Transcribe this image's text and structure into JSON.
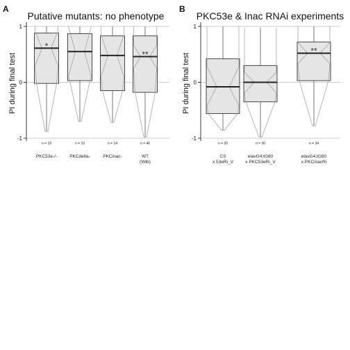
{
  "chart_data": [
    {
      "type": "box",
      "panel_label": "A",
      "title": "Putative mutants: no phenotype",
      "ylabel": "PI during final test",
      "ylim": [
        -1,
        1
      ],
      "yticks": [
        "-1",
        "0",
        "1"
      ],
      "grid": "horizontal at -1, 0, 1",
      "categories": [
        {
          "lines": [
            "PKC53e-/-"
          ],
          "n_label": "n = 19",
          "q1": -0.02,
          "median": 0.61,
          "q3": 0.88,
          "whisker_low": -0.88,
          "whisker_high": 1.0,
          "notch_low": 0.3,
          "notch_high": 0.92,
          "sig": "*"
        },
        {
          "lines": [
            "PKCdelta-"
          ],
          "n_label": "n = 10",
          "q1": 0.03,
          "median": 0.55,
          "q3": 0.87,
          "whisker_low": -0.7,
          "whisker_high": 1.0,
          "notch_low": 0.1,
          "notch_high": 1.0,
          "sig": ""
        },
        {
          "lines": [
            "PKCinac-"
          ],
          "n_label": "n = 14",
          "q1": -0.15,
          "median": 0.48,
          "q3": 0.83,
          "whisker_low": -0.72,
          "whisker_high": 1.0,
          "notch_low": 0.1,
          "notch_high": 0.85,
          "sig": ""
        },
        {
          "lines": [
            "WT",
            "(Wtb)"
          ],
          "n_label": "n = 40",
          "q1": -0.18,
          "median": 0.46,
          "q3": 0.83,
          "whisker_low": -0.98,
          "whisker_high": 1.0,
          "notch_low": 0.25,
          "notch_high": 0.66,
          "sig": "**"
        }
      ]
    },
    {
      "type": "box",
      "panel_label": "B",
      "title": "PKC53e & Inac RNAi experiments",
      "ylabel": "PI during final test",
      "ylim": [
        -1,
        1
      ],
      "yticks": [
        "-1",
        "0",
        "1"
      ],
      "grid": "horizontal at -1, 0, 1",
      "categories": [
        {
          "lines": [
            "CS",
            "x 53eRi_V"
          ],
          "n_label": "n = 20",
          "q1": -0.56,
          "median": -0.08,
          "q3": 0.42,
          "whisker_low": -0.86,
          "whisker_high": 1.0,
          "notch_low": -0.42,
          "notch_high": 0.28,
          "sig": ""
        },
        {
          "lines": [
            "elavG4;tG80",
            "x PKC53eRi_V"
          ],
          "n_label": "n = 30",
          "q1": -0.35,
          "median": 0.0,
          "q3": 0.3,
          "whisker_low": -0.98,
          "whisker_high": 0.98,
          "notch_low": -0.19,
          "notch_high": 0.18,
          "sig": ""
        },
        {
          "lines": [
            "elavG4;tG80",
            "x PKCinacRi"
          ],
          "n_label": "n = 34",
          "q1": 0.03,
          "median": 0.52,
          "q3": 0.72,
          "whisker_low": -0.78,
          "whisker_high": 1.0,
          "notch_low": 0.33,
          "notch_high": 0.71,
          "sig": "**"
        }
      ]
    }
  ]
}
